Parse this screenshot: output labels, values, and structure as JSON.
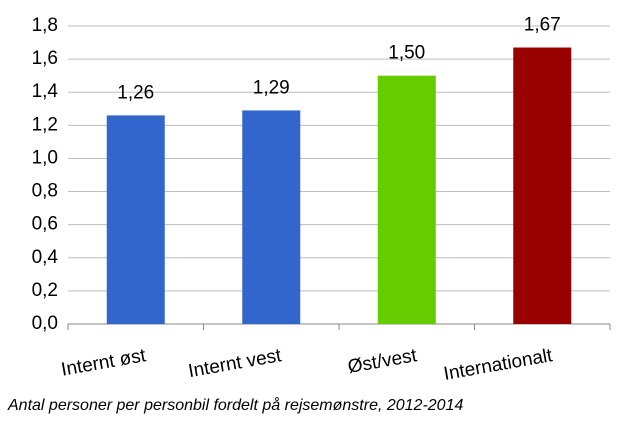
{
  "chart_data": {
    "type": "bar",
    "categories": [
      "Internt øst",
      "Internt vest",
      "Øst/vest",
      "Internationalt"
    ],
    "values": [
      1.26,
      1.29,
      1.5,
      1.67
    ],
    "value_labels": [
      "1,26",
      "1,29",
      "1,50",
      "1,67"
    ],
    "colors": [
      "#3366cc",
      "#3366cc",
      "#66cc00",
      "#990000"
    ],
    "ylim": [
      0,
      1.8
    ],
    "yticks": [
      {
        "value": 0,
        "label": "0,0"
      },
      {
        "value": 0.2,
        "label": "0,2"
      },
      {
        "value": 0.4,
        "label": "0,4"
      },
      {
        "value": 0.6,
        "label": "0,6"
      },
      {
        "value": 0.8,
        "label": "0,8"
      },
      {
        "value": 1.0,
        "label": "1,0"
      },
      {
        "value": 1.2,
        "label": "1,2"
      },
      {
        "value": 1.4,
        "label": "1,4"
      },
      {
        "value": 1.6,
        "label": "1,6"
      },
      {
        "value": 1.8,
        "label": "1,8"
      }
    ],
    "grid": true,
    "caption": "Antal personer per personbil fordelt på rejsemønstre, 2012-2014"
  }
}
